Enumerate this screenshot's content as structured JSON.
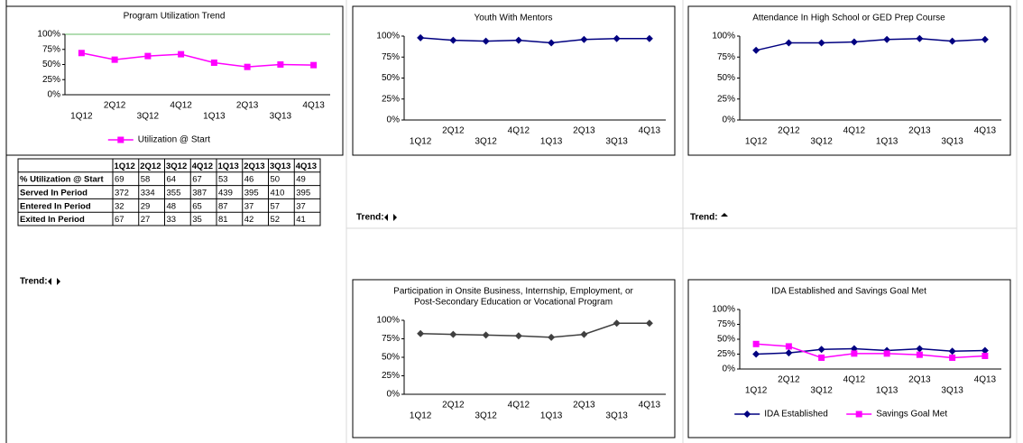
{
  "chart_data": [
    {
      "type": "line",
      "title": "Program Utilization Trend",
      "categories": [
        "1Q12",
        "2Q12",
        "3Q12",
        "4Q12",
        "1Q13",
        "2Q13",
        "3Q13",
        "4Q13"
      ],
      "series": [
        {
          "name": "Utilization @ Start",
          "color": "#ff00ff",
          "values": [
            69,
            58,
            64,
            67,
            53,
            46,
            50,
            49
          ]
        }
      ],
      "ylim": [
        0,
        100
      ],
      "yticks": [
        {
          "value": 0,
          "label": "0%"
        },
        {
          "value": 25,
          "label": "25%"
        },
        {
          "value": 50,
          "label": "50%"
        },
        {
          "value": 75,
          "label": "75%"
        },
        {
          "value": 100,
          "label": "100%"
        }
      ]
    },
    {
      "type": "line",
      "title": "Youth With Mentors",
      "categories": [
        "1Q12",
        "2Q12",
        "3Q12",
        "4Q12",
        "1Q13",
        "2Q13",
        "3Q13",
        "4Q13"
      ],
      "values": [
        98,
        95,
        94,
        95,
        92,
        96,
        97,
        97
      ],
      "color": "#000080",
      "ylim": [
        0,
        100
      ],
      "yticks": [
        {
          "value": 0,
          "label": "0%"
        },
        {
          "value": 25,
          "label": "25%"
        },
        {
          "value": 50,
          "label": "50%"
        },
        {
          "value": 75,
          "label": "75%"
        },
        {
          "value": 100,
          "label": "100%"
        }
      ]
    },
    {
      "type": "line",
      "title": "Attendance In High School or GED Prep Course",
      "categories": [
        "1Q12",
        "2Q12",
        "3Q12",
        "4Q12",
        "1Q13",
        "2Q13",
        "3Q13",
        "4Q13"
      ],
      "values": [
        83,
        92,
        92,
        93,
        96,
        97,
        94,
        96
      ],
      "color": "#000080",
      "ylim": [
        0,
        100
      ],
      "yticks": [
        {
          "value": 0,
          "label": "0%"
        },
        {
          "value": 25,
          "label": "25%"
        },
        {
          "value": 50,
          "label": "50%"
        },
        {
          "value": 75,
          "label": "75%"
        },
        {
          "value": 100,
          "label": "100%"
        }
      ]
    },
    {
      "type": "line",
      "title": [
        "Participation in Onsite Business, Internship, Employment, or",
        "Post-Secondary Education or Vocational Program"
      ],
      "categories": [
        "1Q12",
        "2Q12",
        "3Q12",
        "4Q12",
        "1Q13",
        "2Q13",
        "3Q13",
        "4Q13"
      ],
      "values": [
        82,
        81,
        80,
        79,
        77,
        81,
        96,
        96
      ],
      "color": "#404040",
      "ylim": [
        0,
        100
      ],
      "yticks": [
        {
          "value": 0,
          "label": "0%"
        },
        {
          "value": 25,
          "label": "25%"
        },
        {
          "value": 50,
          "label": "50%"
        },
        {
          "value": 75,
          "label": "75%"
        },
        {
          "value": 100,
          "label": "100%"
        }
      ]
    },
    {
      "type": "line",
      "title": "IDA Established and Savings Goal Met",
      "categories": [
        "1Q12",
        "2Q12",
        "3Q12",
        "4Q12",
        "1Q13",
        "2Q13",
        "3Q13",
        "4Q13"
      ],
      "series": [
        {
          "name": "IDA Established",
          "color": "#000080",
          "values": [
            25,
            27,
            33,
            34,
            31,
            34,
            30,
            31
          ]
        },
        {
          "name": "Savings Goal Met",
          "color": "#ff00ff",
          "values": [
            42,
            38,
            19,
            26,
            26,
            24,
            19,
            22
          ]
        }
      ],
      "ylim": [
        0,
        100
      ],
      "yticks": [
        {
          "value": 0,
          "label": "0%"
        },
        {
          "value": 25,
          "label": "25%"
        },
        {
          "value": 50,
          "label": "50%"
        },
        {
          "value": 75,
          "label": "75%"
        },
        {
          "value": 100,
          "label": "100%"
        }
      ]
    }
  ],
  "table": {
    "columns": [
      "1Q12",
      "2Q12",
      "3Q12",
      "4Q12",
      "1Q13",
      "2Q13",
      "3Q13",
      "4Q13"
    ],
    "rows": [
      {
        "label": "% Utilization @ Start",
        "values": [
          69,
          58,
          64,
          67,
          53,
          46,
          50,
          49
        ]
      },
      {
        "label": "Served In Period",
        "values": [
          372,
          334,
          355,
          387,
          439,
          395,
          410,
          395
        ]
      },
      {
        "label": "Entered In Period",
        "values": [
          32,
          29,
          48,
          65,
          87,
          37,
          57,
          37
        ]
      },
      {
        "label": "Exited In Period",
        "values": [
          67,
          27,
          33,
          35,
          81,
          42,
          52,
          41
        ]
      }
    ]
  },
  "trends": [
    "Trend:",
    "Trend:",
    "Trend:"
  ]
}
